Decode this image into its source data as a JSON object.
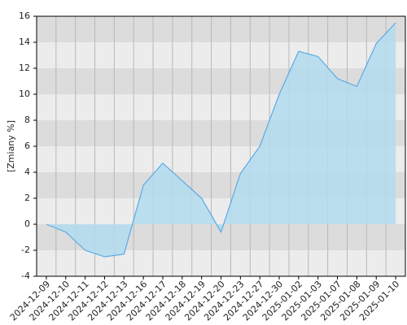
{
  "chart_data": {
    "type": "area",
    "y_label": "[Zmiany %]",
    "categories": [
      "2024-12-09",
      "2024-12-10",
      "2024-12-11",
      "2024-12-12",
      "2024-12-13",
      "2024-12-16",
      "2024-12-17",
      "2024-12-18",
      "2024-12-19",
      "2024-12-20",
      "2024-12-23",
      "2024-12-27",
      "2024-12-30",
      "2025-01-02",
      "2025-01-03",
      "2025-01-07",
      "2025-01-08",
      "2025-01-09",
      "2025-01-10"
    ],
    "series": [
      {
        "name": "Zmiany",
        "color": "#5aaae6",
        "fill": "#b3dcef",
        "values": [
          0,
          -0.6,
          -2,
          -2.5,
          -2.3,
          3,
          4.7,
          3.35,
          2,
          -0.6,
          3.9,
          6,
          10,
          13.3,
          12.9,
          11.2,
          10.6,
          13.9,
          15.5
        ]
      }
    ],
    "ylim": [
      -4,
      16
    ],
    "yticks": [
      -4,
      -2,
      0,
      2,
      4,
      6,
      8,
      10,
      12,
      14,
      16
    ],
    "grid": true
  }
}
